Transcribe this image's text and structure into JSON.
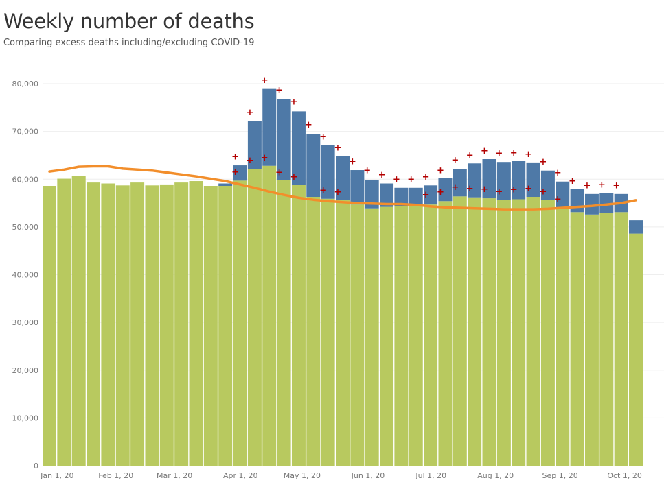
{
  "header": {
    "title": "Weekly number of deaths",
    "subtitle": "Comparing excess deaths including/excluding COVID-19"
  },
  "colors": {
    "base": "#b8c95f",
    "covid": "#4e79a7",
    "average_line": "#f28e2b",
    "marker": "#b30000",
    "grid": "#eeeeee"
  },
  "chart_data": {
    "type": "bar",
    "stacked": true,
    "ylim": [
      0,
      82000
    ],
    "yticks": [
      0,
      10000,
      20000,
      30000,
      40000,
      50000,
      60000,
      70000,
      80000
    ],
    "ytick_labels": [
      "0",
      "10,000",
      "20,000",
      "30,000",
      "40,000",
      "50,000",
      "60,000",
      "70,000",
      "80,000"
    ],
    "xtick_labels": [
      {
        "label": "Jan 1, 20",
        "week_index": 1
      },
      {
        "label": "Feb 1, 20",
        "week_index": 5
      },
      {
        "label": "Mar 1, 20",
        "week_index": 9
      },
      {
        "label": "Apr 1, 20",
        "week_index": 13.5
      },
      {
        "label": "May 1, 20",
        "week_index": 17.7
      },
      {
        "label": "Jun 1, 20",
        "week_index": 22.2
      },
      {
        "label": "Jul 1, 20",
        "week_index": 26.5
      },
      {
        "label": "Aug 1, 20",
        "week_index": 30.9
      },
      {
        "label": "Sep 1, 20",
        "week_index": 35.3
      },
      {
        "label": "Oct 1, 20",
        "week_index": 39.7
      }
    ],
    "series": [
      {
        "values": [
          58600,
          60100,
          60700,
          59300,
          59100,
          58700,
          59300,
          58700,
          58900,
          59300,
          59600,
          58600,
          58600,
          59700,
          62100,
          62800,
          59800,
          58800,
          56300,
          55900,
          55600,
          54700,
          53900,
          54200,
          54300,
          54600,
          54700,
          55400,
          56400,
          56200,
          56000,
          55600,
          55800,
          56300,
          55700,
          54100,
          53100,
          52600,
          52900,
          53100,
          48600
        ]
      },
      {
        "values": [
          0,
          0,
          0,
          0,
          0,
          0,
          0,
          0,
          0,
          0,
          0,
          0,
          500,
          3200,
          10100,
          16100,
          16900,
          15400,
          13200,
          11200,
          9200,
          7200,
          5900,
          4900,
          3900,
          3600,
          4000,
          4800,
          5700,
          7100,
          8200,
          8000,
          8000,
          7200,
          6100,
          5400,
          4800,
          4300,
          4200,
          3800,
          2800
        ]
      }
    ],
    "average_line": [
      61600,
      62000,
      62600,
      62700,
      62700,
      62200,
      62000,
      61800,
      61400,
      61000,
      60600,
      60100,
      59600,
      58900,
      58200,
      57400,
      56700,
      56100,
      55700,
      55400,
      55200,
      55000,
      54900,
      54800,
      54800,
      54600,
      54300,
      54100,
      54000,
      53900,
      53800,
      53700,
      53700,
      53700,
      53800,
      54000,
      54200,
      54400,
      54700,
      55000,
      55600
    ],
    "markers_including": [
      null,
      null,
      null,
      null,
      null,
      null,
      null,
      null,
      null,
      null,
      null,
      null,
      null,
      64700,
      74000,
      80700,
      78600,
      76200,
      71400,
      68900,
      66600,
      63700,
      61800,
      60900,
      60000,
      60000,
      60500,
      61800,
      64000,
      65000,
      65900,
      65400,
      65500,
      65200,
      63600,
      61300,
      59600,
      58700,
      58800,
      58700,
      null
    ],
    "markers_excluding": [
      null,
      null,
      null,
      null,
      null,
      null,
      null,
      null,
      null,
      null,
      null,
      null,
      null,
      61500,
      63900,
      64500,
      61400,
      60500,
      null,
      57700,
      57300,
      null,
      null,
      null,
      null,
      null,
      56700,
      57300,
      58300,
      58000,
      57900,
      57400,
      57800,
      58000,
      57400,
      55800,
      null,
      null,
      null,
      null,
      null
    ],
    "marker_symbol": "+"
  }
}
